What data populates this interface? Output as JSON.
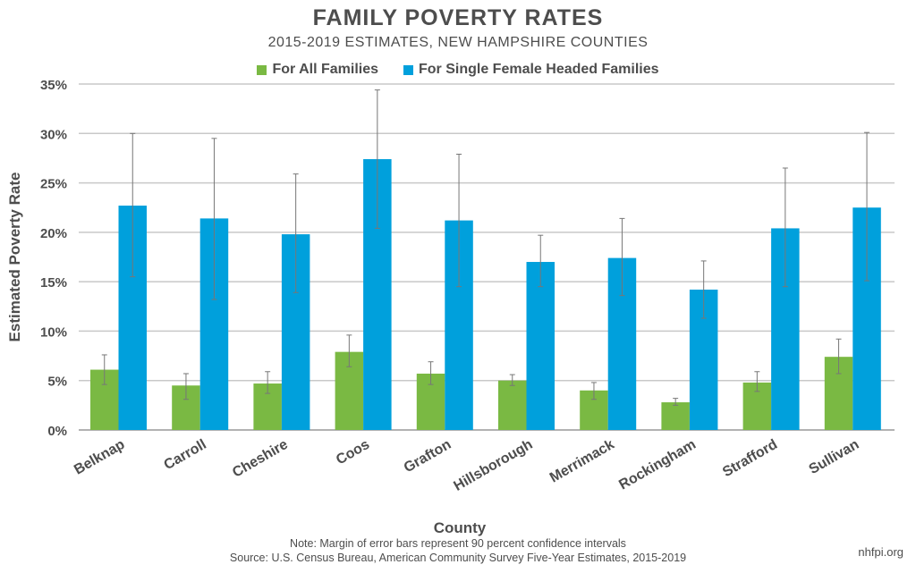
{
  "chart_data": {
    "type": "bar",
    "title": "FAMILY POVERTY RATES",
    "subtitle": "2015-2019 ESTIMATES, NEW HAMPSHIRE COUNTIES",
    "xlabel": "County",
    "ylabel": "Estimated Poverty Rate",
    "ylim": [
      0,
      35
    ],
    "yticks": [
      "0%",
      "5%",
      "10%",
      "15%",
      "20%",
      "25%",
      "30%",
      "35%"
    ],
    "grid": true,
    "legend_placement": "top",
    "categories": [
      "Belknap",
      "Carroll",
      "Cheshire",
      "Coos",
      "Grafton",
      "Hillsborough",
      "Merrimack",
      "Rockingham",
      "Strafford",
      "Sullivan"
    ],
    "series": [
      {
        "name": "For All Families",
        "color": "#7ab943",
        "values": [
          6.1,
          4.5,
          4.7,
          7.9,
          5.7,
          5.0,
          4.0,
          2.8,
          4.8,
          7.4
        ],
        "error_low": [
          4.6,
          3.1,
          3.7,
          6.4,
          4.6,
          4.5,
          3.1,
          2.5,
          3.9,
          5.7
        ],
        "error_high": [
          7.6,
          5.7,
          5.9,
          9.6,
          6.9,
          5.6,
          4.8,
          3.2,
          5.9,
          9.2
        ]
      },
      {
        "name": "For Single Female Headed Families",
        "color": "#00a0dc",
        "values": [
          22.7,
          21.4,
          19.8,
          27.4,
          21.2,
          17.0,
          17.4,
          14.2,
          20.4,
          22.5
        ],
        "error_low": [
          15.5,
          13.2,
          13.9,
          20.4,
          14.5,
          14.5,
          13.6,
          11.3,
          14.5,
          15.1
        ],
        "error_high": [
          30.0,
          29.5,
          25.9,
          34.4,
          27.9,
          19.7,
          21.4,
          17.1,
          26.5,
          30.1
        ]
      }
    ]
  },
  "footer": {
    "note": "Note: Margin of error bars represent 90 percent confidence intervals",
    "source": "Source: U.S. Census Bureau, American Community Survey Five-Year Estimates, 2015-2019",
    "site": "nhfpi.org"
  }
}
